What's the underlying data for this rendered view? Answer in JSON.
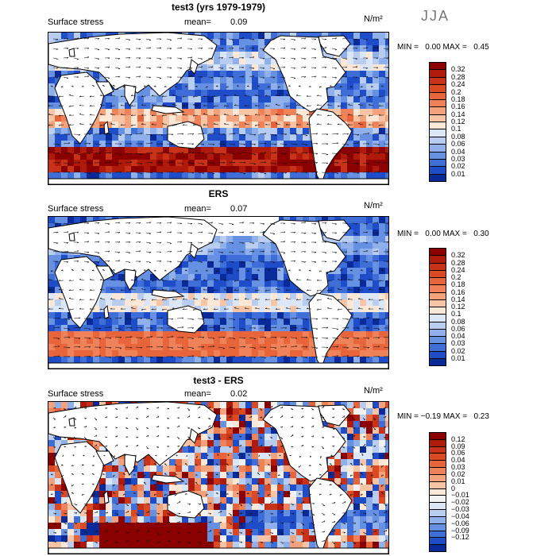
{
  "season": "JJA",
  "units": "N/m²",
  "panels": [
    {
      "title": "test3 (yrs 1979-1979)",
      "field": "Surface stress",
      "mean_label": "mean=",
      "mean": "0.09",
      "min_label": "MIN =",
      "min": "0.00",
      "max_label": "MAX =",
      "max": "0.45",
      "colorbar_labels": [
        "0.32",
        "0.28",
        "0.24",
        "0.2",
        "0.18",
        "0.16",
        "0.14",
        "0.12",
        "0.1",
        "0.08",
        "0.06",
        "0.04",
        "0.03",
        "0.02",
        "0.01"
      ]
    },
    {
      "title": "ERS",
      "field": "Surface stress",
      "mean_label": "mean=",
      "mean": "0.07",
      "min_label": "MIN =",
      "min": "0.00",
      "max_label": "MAX =",
      "max": "0.30",
      "colorbar_labels": [
        "0.32",
        "0.28",
        "0.24",
        "0.2",
        "0.18",
        "0.16",
        "0.14",
        "0.12",
        "0.1",
        "0.08",
        "0.06",
        "0.04",
        "0.03",
        "0.02",
        "0.01"
      ]
    },
    {
      "title": "test3 - ERS",
      "field": "Surface stress",
      "mean_label": "mean=",
      "mean": "0.02",
      "min_label": "MIN =",
      "min": "−0.19",
      "max_label": "MAX =",
      "max": "0.23",
      "colorbar_labels": [
        "0.12",
        "0.09",
        "0.06",
        "0.04",
        "0.03",
        "0.02",
        "0.01",
        "0",
        "−0.01",
        "−0.02",
        "−0.03",
        "−0.04",
        "−0.06",
        "−0.09",
        "−0.12"
      ]
    }
  ],
  "colors": {
    "seq": [
      "#8b0000",
      "#b01a0a",
      "#c83218",
      "#dc4a24",
      "#e8643a",
      "#ef8258",
      "#f4a27c",
      "#f8c4a6",
      "#fde7d6",
      "#dbe6f6",
      "#b8cdf0",
      "#8fb0ea",
      "#6690e2",
      "#3f6ed8",
      "#1f4cc8",
      "#0a2a9a"
    ],
    "div": [
      "#8b0000",
      "#b01a0a",
      "#c83218",
      "#dc4a24",
      "#e8643a",
      "#ef8258",
      "#f4a27c",
      "#f8c4a6",
      "#fde7d6",
      "#f2f2f2",
      "#dbe6f6",
      "#b8cdf0",
      "#8fb0ea",
      "#6690e2",
      "#3f6ed8",
      "#1f4cc8",
      "#0a2a9a"
    ],
    "land": "#ffffff",
    "coast": "#000000"
  }
}
